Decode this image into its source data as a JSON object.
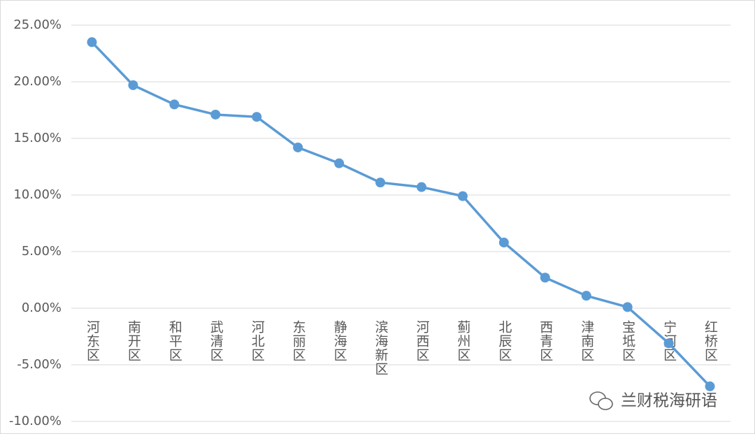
{
  "chart_data": {
    "type": "line",
    "categories": [
      "河东区",
      "南开区",
      "和平区",
      "武清区",
      "河北区",
      "东丽区",
      "静海区",
      "滨海新区",
      "河西区",
      "蓟州区",
      "北辰区",
      "西青区",
      "津南区",
      "宝坻区",
      "宁河区",
      "红桥区"
    ],
    "values": [
      23.5,
      19.7,
      18.0,
      17.1,
      16.9,
      14.2,
      12.8,
      11.1,
      10.7,
      9.9,
      5.8,
      2.7,
      1.1,
      0.1,
      -3.1,
      -6.9
    ],
    "color": "#5b9bd5",
    "ylim": [
      -10,
      25
    ],
    "yticks": [
      {
        "value": -10,
        "label": "-10.00%"
      },
      {
        "value": -5,
        "label": "-5.00%"
      },
      {
        "value": 0,
        "label": "0.00%"
      },
      {
        "value": 5,
        "label": "5.00%"
      },
      {
        "value": 10,
        "label": "10.00%"
      },
      {
        "value": 15,
        "label": "15.00%"
      },
      {
        "value": 20,
        "label": "20.00%"
      },
      {
        "value": 25,
        "label": "25.00%"
      }
    ],
    "grid": true,
    "watermark": "兰财税海研语"
  }
}
